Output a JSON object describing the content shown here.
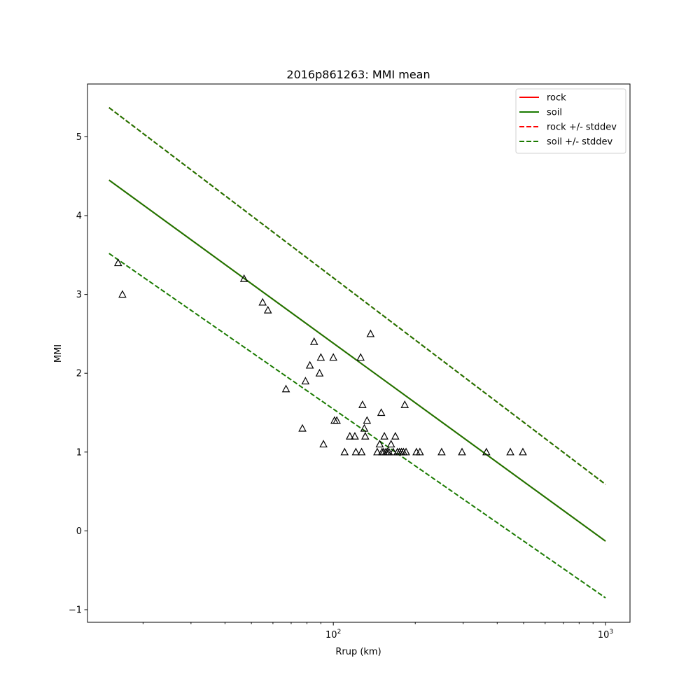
{
  "chart_data": {
    "type": "scatter",
    "title": "2016p861263: MMI mean",
    "xlabel": "Rrup (km)",
    "ylabel": "MMI",
    "xscale": "log",
    "xlim": [
      12.5,
      1230
    ],
    "ylim": [
      -1.16,
      5.67
    ],
    "x_ticks": [
      {
        "value": 100,
        "base": "10",
        "exp": "2"
      },
      {
        "value": 1000,
        "base": "10",
        "exp": "3"
      }
    ],
    "y_ticks": [
      {
        "value": -1,
        "label": "−1"
      },
      {
        "value": 0,
        "label": "0"
      },
      {
        "value": 1,
        "label": "1"
      },
      {
        "value": 2,
        "label": "2"
      },
      {
        "value": 3,
        "label": "3"
      },
      {
        "value": 4,
        "label": "4"
      },
      {
        "value": 5,
        "label": "5"
      }
    ],
    "grid": false,
    "legend_position": "top-right",
    "lines": [
      {
        "name": "rock",
        "style": "solid",
        "color": "#d40000",
        "x": [
          15,
          1000
        ],
        "y": [
          4.45,
          -0.13
        ]
      },
      {
        "name": "soil",
        "style": "solid",
        "color": "#1a7a00",
        "x": [
          15,
          1000
        ],
        "y": [
          4.45,
          -0.13
        ]
      },
      {
        "name": "rock +/- stddev",
        "style": "dashed",
        "color": "#ff0000",
        "x": [
          15,
          1000
        ],
        "y": [
          5.37,
          0.59
        ]
      },
      {
        "name": "soil +/- stddev",
        "style": "dashed",
        "color": "#1a7a00",
        "x": [
          15,
          1000
        ],
        "y": [
          5.37,
          0.59
        ]
      },
      {
        "name": "",
        "style": "dashed",
        "color": "#1a7a00",
        "x": [
          15,
          1000
        ],
        "y": [
          3.52,
          -0.85
        ]
      }
    ],
    "legend": [
      {
        "label": "rock",
        "style": "solid",
        "color": "#ff0000"
      },
      {
        "label": "soil",
        "style": "solid",
        "color": "#1a7a00"
      },
      {
        "label": "rock +/- stddev",
        "style": "dashed",
        "color": "#ff0000"
      },
      {
        "label": "soil +/- stddev",
        "style": "dashed",
        "color": "#1a7a00"
      }
    ],
    "points": [
      {
        "x": 16.2,
        "y": 3.4
      },
      {
        "x": 16.8,
        "y": 3.0
      },
      {
        "x": 47,
        "y": 3.2
      },
      {
        "x": 55,
        "y": 2.9
      },
      {
        "x": 57.5,
        "y": 2.8
      },
      {
        "x": 67,
        "y": 1.8
      },
      {
        "x": 77,
        "y": 1.3
      },
      {
        "x": 79,
        "y": 1.9
      },
      {
        "x": 82,
        "y": 2.1
      },
      {
        "x": 85,
        "y": 2.4
      },
      {
        "x": 89,
        "y": 2.0
      },
      {
        "x": 90,
        "y": 2.2
      },
      {
        "x": 92,
        "y": 1.1
      },
      {
        "x": 100,
        "y": 2.2
      },
      {
        "x": 101,
        "y": 1.4
      },
      {
        "x": 103,
        "y": 1.4
      },
      {
        "x": 110,
        "y": 1.0
      },
      {
        "x": 115,
        "y": 1.2
      },
      {
        "x": 120,
        "y": 1.2
      },
      {
        "x": 121,
        "y": 1.0
      },
      {
        "x": 126,
        "y": 2.2
      },
      {
        "x": 127,
        "y": 1.0
      },
      {
        "x": 128,
        "y": 1.6
      },
      {
        "x": 130,
        "y": 1.3
      },
      {
        "x": 131,
        "y": 1.2
      },
      {
        "x": 133,
        "y": 1.4
      },
      {
        "x": 137,
        "y": 2.5
      },
      {
        "x": 145,
        "y": 1.0
      },
      {
        "x": 148,
        "y": 1.1
      },
      {
        "x": 150,
        "y": 1.5
      },
      {
        "x": 151,
        "y": 1.0
      },
      {
        "x": 153,
        "y": 1.0
      },
      {
        "x": 154,
        "y": 1.2
      },
      {
        "x": 156,
        "y": 1.0
      },
      {
        "x": 158,
        "y": 1.0
      },
      {
        "x": 160,
        "y": 1.0
      },
      {
        "x": 163,
        "y": 1.1
      },
      {
        "x": 166,
        "y": 1.0
      },
      {
        "x": 169,
        "y": 1.2
      },
      {
        "x": 172,
        "y": 1.0
      },
      {
        "x": 175,
        "y": 1.0
      },
      {
        "x": 178,
        "y": 1.0
      },
      {
        "x": 181,
        "y": 1.0
      },
      {
        "x": 183,
        "y": 1.6
      },
      {
        "x": 185,
        "y": 1.0
      },
      {
        "x": 202,
        "y": 1.0
      },
      {
        "x": 208,
        "y": 1.0
      },
      {
        "x": 250,
        "y": 1.0
      },
      {
        "x": 297,
        "y": 1.0
      },
      {
        "x": 365,
        "y": 1.0
      },
      {
        "x": 447,
        "y": 1.0
      },
      {
        "x": 497,
        "y": 1.0
      }
    ]
  }
}
